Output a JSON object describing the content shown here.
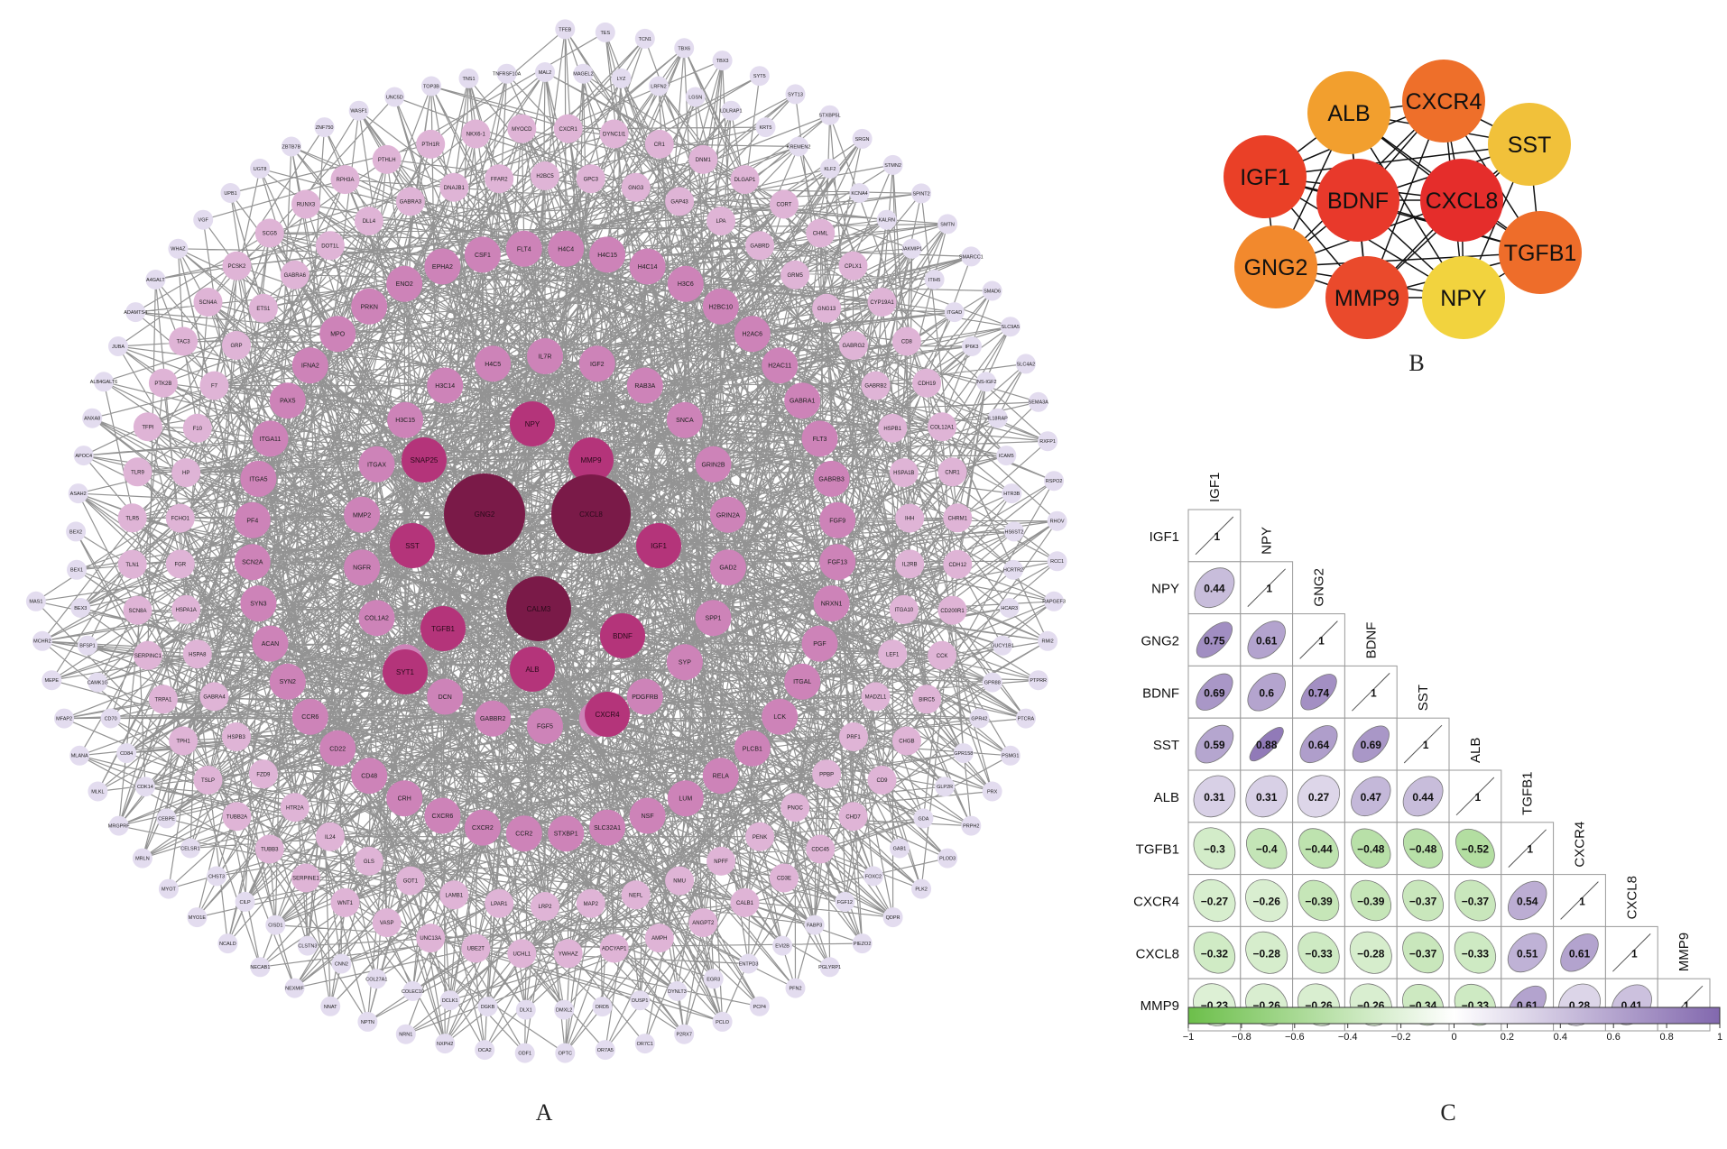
{
  "panels": {
    "a": "A",
    "b": "B",
    "c": "C"
  },
  "network": {
    "edge_color": "#808080",
    "colors": {
      "core": "#7a1a48",
      "inner": "#b4347a",
      "mid": "#cd83b8",
      "outer": "#dfb4d6",
      "rim": "#e3dcef"
    },
    "core": [
      "GNG2",
      "CXCL8",
      "CALM3"
    ],
    "inner": [
      "NPY",
      "SNAP25",
      "MMP9",
      "SST",
      "IGF1",
      "TGFB1",
      "BDNF",
      "SYT1",
      "ALB",
      "CXCR4"
    ],
    "mid": [
      "IL7R",
      "IGF2",
      "RAB3A",
      "SNCA",
      "GRIN2B",
      "GRIN2A",
      "GAD2",
      "SPP1",
      "SYP",
      "PDGFRB",
      "GAD1",
      "FGF5",
      "GABBR2",
      "DCN",
      "TAC1",
      "COL1A2",
      "NGFR",
      "MMP2",
      "ITGAX",
      "H3C15",
      "H3C14",
      "H4C5",
      "H4C4",
      "H4C15",
      "H4C14",
      "H3C6",
      "H2BC10",
      "H2AC6",
      "H2AC11",
      "GABRA1",
      "FLT3",
      "GABRB3",
      "FGF9",
      "FGF13",
      "NRXN1",
      "PGF",
      "ITGAL",
      "LCK",
      "PLCB1",
      "RELA",
      "LUM",
      "NSF",
      "SLC32A1",
      "STXBP1",
      "CCR2",
      "CXCR2",
      "CXCR6",
      "CRH",
      "CD48",
      "CD22",
      "CCR6",
      "SYN2",
      "ACAN",
      "SYN3",
      "SCN2A",
      "PF4",
      "ITGA5",
      "ITGA11",
      "PAX5",
      "IFNA2",
      "MPO",
      "PRKN",
      "ENO2",
      "EPHA2",
      "CSF1",
      "FLT4"
    ],
    "outer": [
      "H2BC5",
      "GPC3",
      "GNG3",
      "GAP43",
      "LPA",
      "GABRD",
      "GRM5",
      "GNG13",
      "GABRG2",
      "GABRB2",
      "HSPB1",
      "HSPA1B",
      "IHH",
      "IL2RB",
      "ITGA10",
      "LEF1",
      "MADZL1",
      "PRF1",
      "PPBP",
      "PNOC",
      "PENK",
      "NPFF",
      "NMU",
      "NEFL",
      "MAP2",
      "LRP2",
      "LPAR1",
      "LAMB1",
      "GOT1",
      "GLS",
      "IL24",
      "HTR2A",
      "FZD9",
      "HSPB3",
      "GABRA4",
      "HSPA8",
      "HSPA1A",
      "FGR",
      "FCHO1",
      "HP",
      "F10",
      "F7",
      "GRP",
      "ETS1",
      "GABRA6",
      "DOT1L",
      "DLL4",
      "GABRA3",
      "DNAJB1",
      "FFAR2",
      "CXCR1",
      "DYNC1I1",
      "CR1",
      "DNM1",
      "DLGAP1",
      "CORT",
      "CHML",
      "CPLX1",
      "CYP19A1",
      "CD8",
      "CDH19",
      "COL12A1",
      "CNR1",
      "CHRM1",
      "CDH12",
      "CD200R1",
      "CCK",
      "BIRC5",
      "CHGB",
      "CD9",
      "CHD7",
      "CDC45",
      "CD3E",
      "CALB1",
      "ANGPT2",
      "AMPH",
      "ADCYAP1",
      "YWHAZ",
      "UCHL1",
      "UBE2T",
      "UNC13A",
      "VASP",
      "WNT1",
      "SERPINE1",
      "TUBB3",
      "TUBB2A",
      "TSLP",
      "TPH1",
      "TRPA1",
      "SERPINC1",
      "SCN8A",
      "TLN1",
      "TLR5",
      "TLR9",
      "TFPI",
      "PTK2B",
      "TAC3",
      "SCN4A",
      "PCSK2",
      "SCG5",
      "RUNX3",
      "RPH3A",
      "PTHLH",
      "PTH1R",
      "NKX6-1",
      "MYOCD"
    ],
    "rim": [
      "MAL2",
      "MAGEL2",
      "LYZ",
      "LRFN2",
      "LGSN",
      "LDLRAP1",
      "KRT5",
      "KREMEN2",
      "KLF2",
      "KCNA4",
      "KALRN",
      "JAKMIP1",
      "ITIH5",
      "ITGAD",
      "IP6K3",
      "INS-IGF2",
      "IL18RAP",
      "ICAM5",
      "HTR3B",
      "HS6ST2",
      "HCRTR2",
      "HCAR3",
      "GUCY1B1",
      "GPR88",
      "GPR42",
      "GPR158",
      "GLP2R",
      "GDA",
      "GAB1",
      "FOXC2",
      "FGF12",
      "FABP3",
      "EVI2B",
      "ENTPD3",
      "EGR3",
      "DYNLT3",
      "DUSP1",
      "DRD5",
      "DMXL2",
      "DLX1",
      "DGKB",
      "DCLK1",
      "COLEC10",
      "COL27A1",
      "CNN2",
      "CLSTN3",
      "CISD1",
      "CILP",
      "CHST3",
      "CELSR1",
      "CEBPE",
      "CDK14",
      "CD84",
      "CD70",
      "CAMK1G",
      "BFSP1",
      "BEX3",
      "BEX1",
      "BEX2",
      "ASAH2",
      "APOC4",
      "ANXA8",
      "ALB4GALT6",
      "JUBA",
      "ADAMTS4",
      "A4GALT",
      "WHAZ",
      "VGF",
      "UPB1",
      "UGT8",
      "ZBTB7B",
      "ZNF750",
      "WASF1",
      "UNC5D",
      "TOP3B",
      "TNS1",
      "TNFRSF10A",
      "TFEB",
      "TES",
      "TCN1",
      "TBX6",
      "TBX3",
      "SYT5",
      "SYT13",
      "STXBP5L",
      "SRGN",
      "STMN2",
      "SPINT2",
      "SMTN",
      "SMARCC1",
      "SMAD6",
      "SLC9A5",
      "SLC4A2",
      "SEMA3A",
      "RXFP1",
      "RSPO2",
      "RHOV",
      "RCC1",
      "RAPGEF3",
      "RMI2",
      "PTPRR",
      "PTCRA",
      "PSMG1",
      "PRX",
      "PRPH2",
      "PLOD3",
      "PLK2",
      "QDPR",
      "PIEZO2",
      "PGLYRP1",
      "PFN2",
      "PCP4",
      "PCLO",
      "P2RX7",
      "OR7C1",
      "OR7A5",
      "OPTC",
      "ODF1",
      "OCA2",
      "NXPH2",
      "NRN1",
      "NPTN",
      "NNAT",
      "NEXMIF",
      "NECAB1",
      "NCALD",
      "MYO1E",
      "MYOT",
      "MRLN",
      "MRGPRF",
      "MLKL",
      "MLANA",
      "MFAP2",
      "MEPE",
      "MCHR2",
      "MAS1"
    ]
  },
  "hub": {
    "colors": {
      "IGF1": "#ea4027",
      "ALB": "#f29f2e",
      "CXCR4": "#ee6f2a",
      "SST": "#f1c13a",
      "BDNF": "#e8392b",
      "CXCL8": "#e52d2b",
      "GNG2": "#f2892d",
      "MMP9": "#ea4a2c",
      "NPY": "#f2d33e",
      "TGFB1": "#ee6d2a"
    },
    "nodes": [
      "IGF1",
      "ALB",
      "CXCR4",
      "SST",
      "BDNF",
      "CXCL8",
      "GNG2",
      "MMP9",
      "NPY",
      "TGFB1"
    ]
  },
  "chart_data": {
    "type": "heatmap",
    "genes": [
      "IGF1",
      "NPY",
      "GNG2",
      "BDNF",
      "SST",
      "ALB",
      "TGFB1",
      "CXCR4",
      "CXCL8",
      "MMP9"
    ],
    "values": [
      [
        1
      ],
      [
        0.44,
        1
      ],
      [
        0.75,
        0.61,
        1
      ],
      [
        0.69,
        0.6,
        0.74,
        1
      ],
      [
        0.59,
        0.88,
        0.64,
        0.69,
        1
      ],
      [
        0.31,
        0.31,
        0.27,
        0.47,
        0.44,
        1
      ],
      [
        -0.3,
        -0.4,
        -0.44,
        -0.48,
        -0.48,
        -0.52,
        1
      ],
      [
        -0.27,
        -0.26,
        -0.39,
        -0.39,
        -0.37,
        -0.37,
        0.54,
        1
      ],
      [
        -0.32,
        -0.28,
        -0.33,
        -0.28,
        -0.37,
        -0.33,
        0.51,
        0.61,
        1
      ],
      [
        -0.23,
        -0.26,
        -0.26,
        -0.26,
        -0.34,
        -0.33,
        0.61,
        0.28,
        0.41,
        1
      ]
    ],
    "value_labels": [
      [
        "1"
      ],
      [
        "0.44",
        "1"
      ],
      [
        "0.75",
        "0.61",
        "1"
      ],
      [
        "0.69",
        "0.6",
        "0.74",
        "1"
      ],
      [
        "0.59",
        "0.88",
        "0.64",
        "0.69",
        "1"
      ],
      [
        "0.31",
        "0.31",
        "0.27",
        "0.47",
        "0.44",
        "1"
      ],
      [
        "−0.3",
        "−0.4",
        "−0.44",
        "−0.48",
        "−0.48",
        "−0.52",
        "1"
      ],
      [
        "−0.27",
        "−0.26",
        "−0.39",
        "−0.39",
        "−0.37",
        "−0.37",
        "0.54",
        "1"
      ],
      [
        "−0.32",
        "−0.28",
        "−0.33",
        "−0.28",
        "−0.37",
        "−0.33",
        "0.51",
        "0.61",
        "1"
      ],
      [
        "−0.23",
        "−0.26",
        "−0.26",
        "−0.26",
        "−0.34",
        "−0.33",
        "0.61",
        "0.28",
        "0.41",
        "1"
      ]
    ],
    "colorbar": {
      "range": [
        -1,
        1
      ],
      "ticks": [
        "−1",
        "−0.8",
        "−0.6",
        "−0.4",
        "−0.2",
        "0",
        "0.2",
        "0.4",
        "0.6",
        "0.8",
        "1"
      ],
      "negative_color": "#6cbf4a",
      "positive_color": "#8268ae"
    }
  }
}
